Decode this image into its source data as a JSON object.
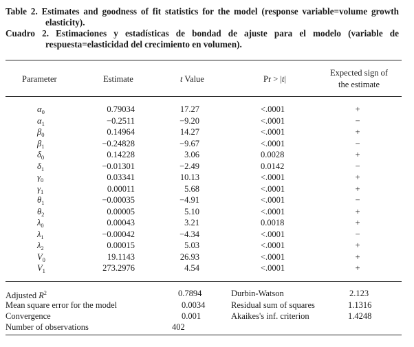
{
  "caption": {
    "en_lines": [
      "Table 2. Estimates and goodness of fit statistics for the model (response variable=volume growth",
      "elasticity)."
    ],
    "es_lines": [
      "Cuadro 2. Estimaciones y estadísticas de bondad de ajuste para el modelo (variable de",
      "respuesta=elasticidad del crecimiento en volumen)."
    ]
  },
  "headers": {
    "parameter": "Parameter",
    "estimate": "Estimate",
    "t_value_italic": "t",
    "t_value_rest": " Value",
    "pr_prefix": "Pr > |",
    "pr_italic": "t",
    "pr_suffix": "|",
    "expected_line1": "Expected sign of",
    "expected_line2": "the estimate"
  },
  "rows": [
    {
      "sym": "α",
      "sub": "0",
      "estimate": "0.79034",
      "t": "17.27",
      "pr": "<.0001",
      "sign": "+"
    },
    {
      "sym": "α",
      "sub": "1",
      "estimate": "−0.2511",
      "t": "−9.20",
      "pr": "<.0001",
      "sign": "−"
    },
    {
      "sym": "β",
      "sub": "0",
      "estimate": "0.14964",
      "t": "14.27",
      "pr": "<.0001",
      "sign": "+"
    },
    {
      "sym": "β",
      "sub": "1",
      "estimate": "−0.24828",
      "t": "−9.67",
      "pr": "<.0001",
      "sign": "−"
    },
    {
      "sym": "δ",
      "sub": "0",
      "estimate": "0.14228",
      "t": "3.06",
      "pr": "0.0028",
      "sign": "+"
    },
    {
      "sym": "δ",
      "sub": "1",
      "estimate": "−0.01301",
      "t": "−2.49",
      "pr": "0.0142",
      "sign": "−"
    },
    {
      "sym": "γ",
      "sub": "0",
      "estimate": "0.03341",
      "t": "10.13",
      "pr": "<.0001",
      "sign": "+"
    },
    {
      "sym": "γ",
      "sub": "1",
      "estimate": "0.00011",
      "t": "5.68",
      "pr": "<.0001",
      "sign": "+"
    },
    {
      "sym": "θ",
      "sub": "1",
      "estimate": "−0.00035",
      "t": "−4.91",
      "pr": "<.0001",
      "sign": "−"
    },
    {
      "sym": "θ",
      "sub": "2",
      "estimate": "0.00005",
      "t": "5.10",
      "pr": "<.0001",
      "sign": "+"
    },
    {
      "sym": "λ",
      "sub": "0",
      "estimate": "0.00043",
      "t": "3.21",
      "pr": "0.0018",
      "sign": "+"
    },
    {
      "sym": "λ",
      "sub": "1",
      "estimate": "−0.00042",
      "t": "−4.34",
      "pr": "<.0001",
      "sign": "−"
    },
    {
      "sym": "λ",
      "sub": "2",
      "estimate": "0.00015",
      "t": "5.03",
      "pr": "<.0001",
      "sign": "+"
    },
    {
      "sym": "V",
      "sub": "0",
      "estimate": "19.1143",
      "t": "26.93",
      "pr": "<.0001",
      "sign": "+"
    },
    {
      "sym": "V",
      "sub": "1",
      "estimate": "273.2976",
      "t": "4.54",
      "pr": "<.0001",
      "sign": "+"
    }
  ],
  "stats": {
    "adj_r2_label": "Adjusted ",
    "adj_r2_symbol": "R",
    "adj_r2_sup": "2",
    "adj_r2_value": "0.7894",
    "mse_label": "Mean square error for the model",
    "mse_value": "0.0034",
    "convergence_label": "Convergence",
    "convergence_value": "0.001",
    "nobs_label": "Number of observations",
    "nobs_value": "402",
    "dw_label": "Durbin-Watson",
    "dw_value": "2.123",
    "rss_label": "Residual sum of squares",
    "rss_value": "1.1316",
    "aic_label": "Akaikes's inf. criterion",
    "aic_value": "1.4248"
  }
}
